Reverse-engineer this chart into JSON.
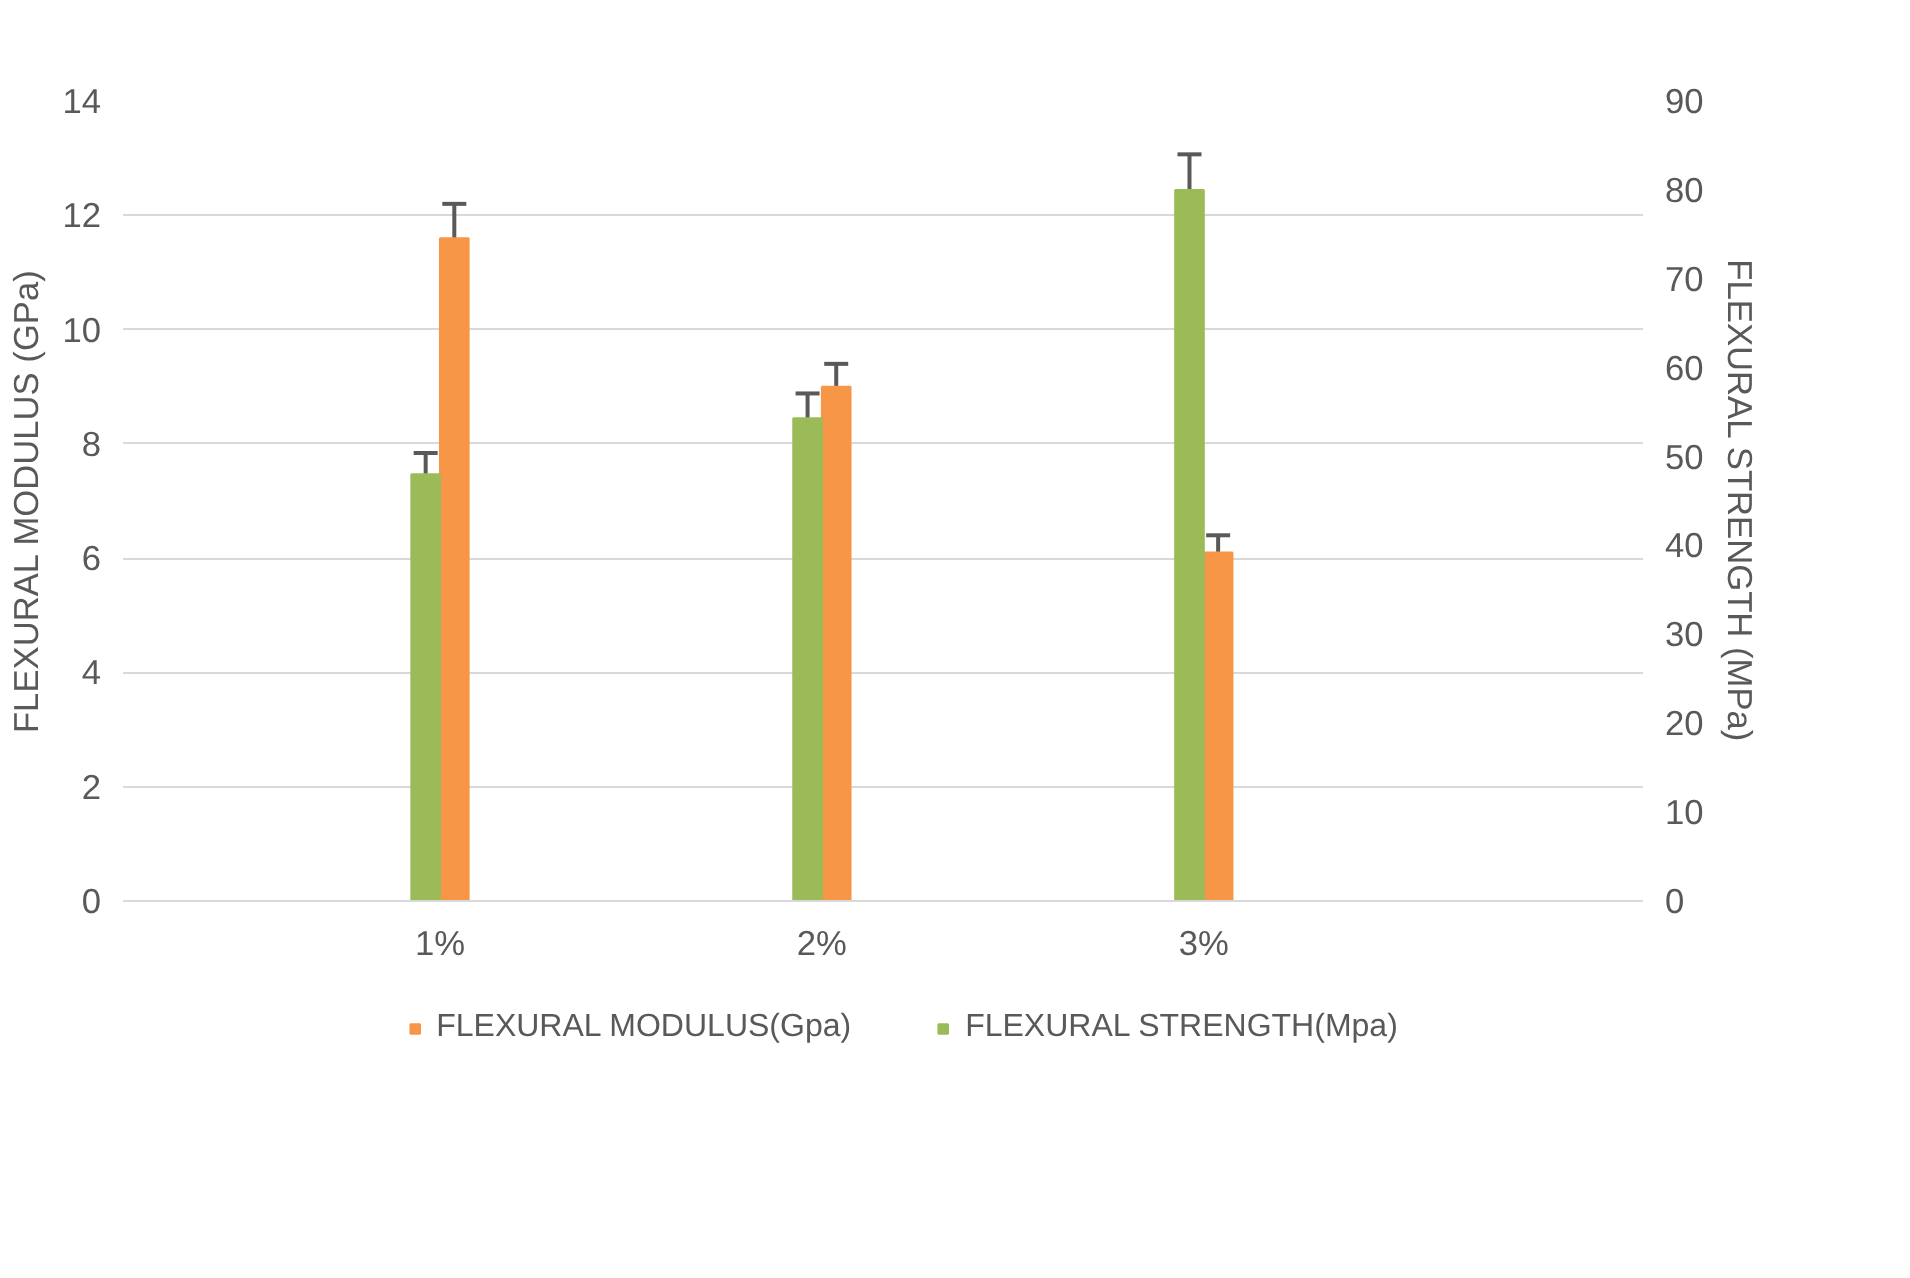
{
  "chart_data": {
    "type": "bar",
    "categories": [
      "1%",
      "2%",
      "3%"
    ],
    "ylabel": "FLEXURAL MODULUS (GPa)",
    "y2label": "FLEXURAL STRENGTH (MPa)",
    "ylim": [
      0,
      14
    ],
    "yticks": [
      0,
      2,
      4,
      6,
      8,
      10,
      12,
      14
    ],
    "y2lim": [
      0,
      90
    ],
    "y2ticks": [
      0,
      10,
      20,
      30,
      40,
      50,
      60,
      70,
      80,
      90
    ],
    "grid": "y",
    "legend": "bottom",
    "series": [
      {
        "name": "FLEXURAL MODULUS(Gpa)",
        "color": "#f79646",
        "values": [
          11.6,
          9.0,
          6.1
        ],
        "errors": [
          0.6,
          0.4,
          0.3
        ]
      },
      {
        "name": "FLEXURAL STRENGTH(Mpa)",
        "color": "#9bbb59",
        "axis": "y2",
        "values": [
          48,
          54.3,
          80
        ],
        "errors": [
          2.4,
          2.8,
          4
        ]
      }
    ]
  }
}
